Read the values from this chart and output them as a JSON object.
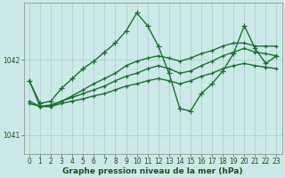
{
  "xlabel": "Graphe pression niveau de la mer (hPa)",
  "xlim": [
    -0.5,
    23.5
  ],
  "ylim": [
    1040.75,
    1042.75
  ],
  "yticks": [
    1041,
    1042
  ],
  "xticks": [
    0,
    1,
    2,
    3,
    4,
    5,
    6,
    7,
    8,
    9,
    10,
    11,
    12,
    13,
    14,
    15,
    16,
    17,
    18,
    19,
    20,
    21,
    22,
    23
  ],
  "bg_color": "#cce8e8",
  "grid_color": "#aacccc",
  "series": [
    {
      "x": [
        0,
        1,
        2,
        3,
        4,
        5,
        6,
        7,
        8,
        9,
        10,
        11,
        12,
        13,
        14,
        15,
        16,
        17,
        18,
        19,
        20,
        21,
        22,
        23
      ],
      "y": [
        1041.72,
        1041.42,
        1041.45,
        1041.62,
        1041.75,
        1041.88,
        1041.98,
        1042.1,
        1042.22,
        1042.38,
        1042.62,
        1042.45,
        1042.18,
        1041.82,
        1041.35,
        1041.32,
        1041.55,
        1041.68,
        1041.85,
        1042.08,
        1042.45,
        1042.15,
        1041.95,
        1042.05
      ],
      "color": "#1a7030",
      "marker": "+",
      "lw": 1.0,
      "ms": 4
    },
    {
      "x": [
        0,
        1,
        2,
        3,
        4,
        5,
        6,
        7,
        8,
        9,
        10,
        11,
        12,
        13,
        14,
        15,
        16,
        17,
        18,
        19,
        20,
        21,
        22,
        23
      ],
      "y": [
        1041.42,
        1041.38,
        1041.38,
        1041.42,
        1041.45,
        1041.48,
        1041.52,
        1041.55,
        1041.6,
        1041.65,
        1041.68,
        1041.72,
        1041.75,
        1041.72,
        1041.68,
        1041.72,
        1041.78,
        1041.82,
        1041.88,
        1041.92,
        1041.95,
        1041.92,
        1041.9,
        1041.88
      ],
      "color": "#1a7030",
      "marker": "+",
      "lw": 1.0,
      "ms": 3
    },
    {
      "x": [
        0,
        1,
        2,
        3,
        4,
        5,
        6,
        7,
        8,
        9,
        10,
        11,
        12,
        13,
        14,
        15,
        16,
        17,
        18,
        19,
        20,
        21,
        22,
        23
      ],
      "y": [
        1041.45,
        1041.38,
        1041.4,
        1041.45,
        1041.5,
        1041.55,
        1041.6,
        1041.65,
        1041.72,
        1041.78,
        1041.82,
        1041.88,
        1041.92,
        1041.88,
        1041.82,
        1041.85,
        1041.92,
        1041.98,
        1042.05,
        1042.1,
        1042.15,
        1042.1,
        1042.08,
        1042.05
      ],
      "color": "#1a7030",
      "marker": "+",
      "lw": 1.0,
      "ms": 3
    },
    {
      "x": [
        0,
        1,
        2,
        3,
        4,
        5,
        6,
        7,
        8,
        9,
        10,
        11,
        12,
        13,
        14,
        15,
        16,
        17,
        18,
        19,
        20,
        21,
        22,
        23
      ],
      "y": [
        1041.72,
        1041.38,
        1041.38,
        1041.45,
        1041.52,
        1041.6,
        1041.68,
        1041.75,
        1041.82,
        1041.92,
        1041.98,
        1042.02,
        1042.05,
        1042.02,
        1041.98,
        1042.02,
        1042.08,
        1042.12,
        1042.18,
        1042.22,
        1042.22,
        1042.18,
        1042.18,
        1042.18
      ],
      "color": "#1a7030",
      "marker": "+",
      "lw": 1.0,
      "ms": 3
    }
  ],
  "tick_fontsize": 5.5,
  "label_fontsize": 6.5,
  "tick_color": "#1a5020",
  "axis_color": "#888888"
}
